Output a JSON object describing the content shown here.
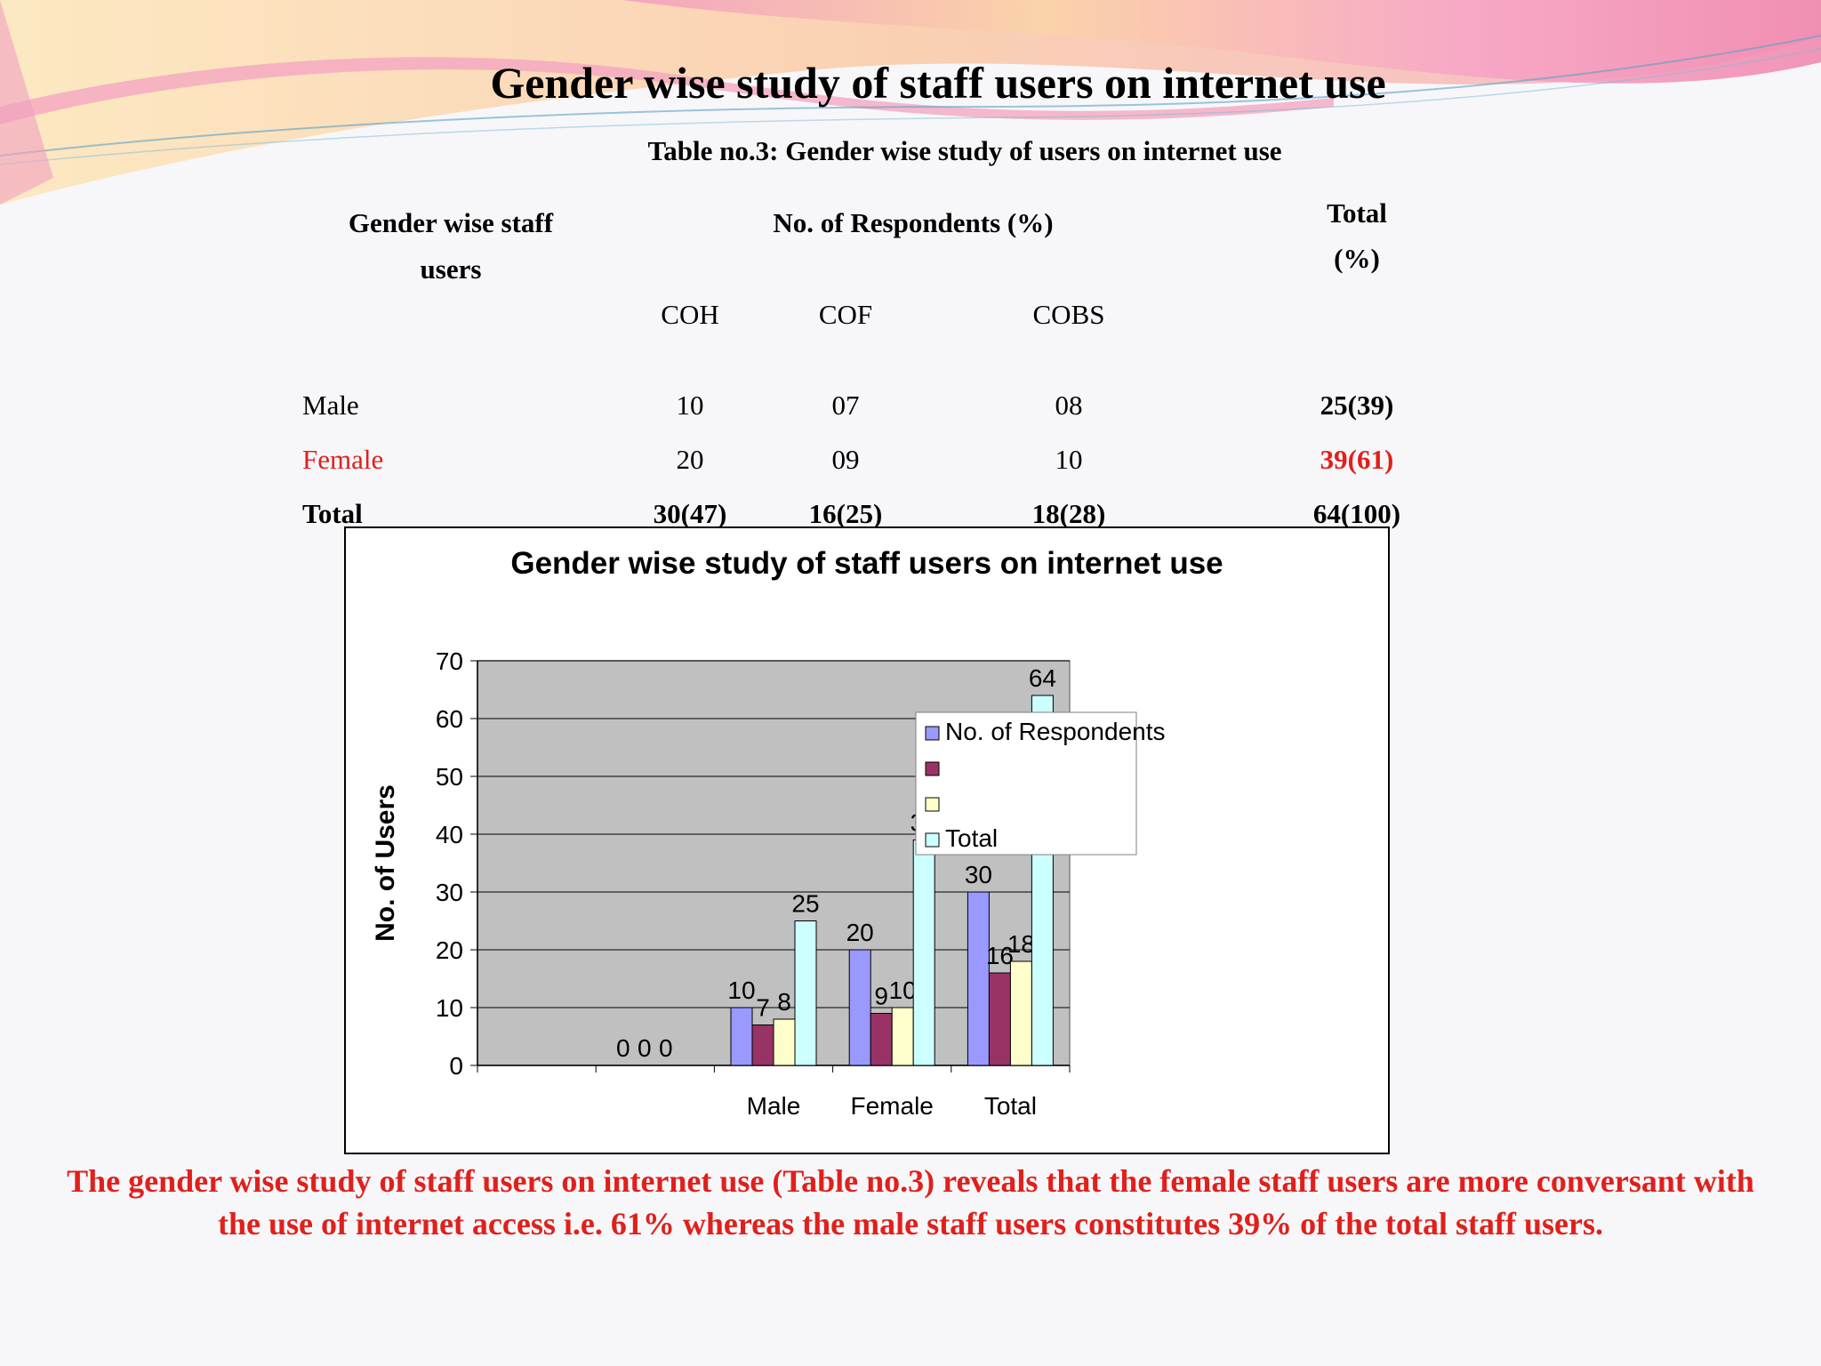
{
  "slide": {
    "title": "Gender wise study of staff users on internet use",
    "caption": "Table no.3: Gender wise study of users on internet use",
    "conclusion": "The gender wise study of staff users on internet use (Table no.3) reveals that the female staff users are more conversant with the use of internet access i.e. 61% whereas the male staff users constitutes 39% of the total staff users."
  },
  "table": {
    "header_gender_line1": "Gender wise staff",
    "header_gender_line2": "users",
    "header_respondents": "No. of Respondents (%)",
    "header_total_line1": "Total",
    "header_total_line2": "(%)",
    "sub_coh": "COH",
    "sub_cof": "COF",
    "sub_cobs": "COBS",
    "rows": [
      {
        "label": "Male",
        "coh": "10",
        "cof": "07",
        "cobs": "08",
        "total": "25(39)"
      },
      {
        "label": "Female",
        "coh": "20",
        "cof": "09",
        "cobs": "10",
        "total": "39(61)"
      },
      {
        "label": "Total",
        "coh": "30(47)",
        "cof": "16(25)",
        "cobs": "18(28)",
        "total": "64(100)"
      }
    ]
  },
  "colors": {
    "series": [
      "#9999ff",
      "#993366",
      "#ffffcc",
      "#ccffff"
    ],
    "plot_bg": "#c0c0c0",
    "highlight": "#e0201b"
  },
  "chart_data": {
    "type": "bar",
    "title": "Gender wise study of staff users on internet use",
    "xlabel": "",
    "ylabel": "No. of Users",
    "ylim": [
      0,
      70
    ],
    "yticks": [
      0,
      10,
      20,
      30,
      40,
      50,
      60,
      70
    ],
    "grid": true,
    "legend_position": "right",
    "categories": [
      "",
      "",
      "Male",
      "Female",
      "Total"
    ],
    "series": [
      {
        "name": "No. of Respondents",
        "values": [
          null,
          0,
          10,
          20,
          30
        ]
      },
      {
        "name": "",
        "values": [
          null,
          0,
          7,
          9,
          16
        ]
      },
      {
        "name": "",
        "values": [
          null,
          0,
          8,
          10,
          18
        ]
      },
      {
        "name": "Total",
        "values": [
          null,
          null,
          25,
          39,
          64
        ]
      }
    ]
  }
}
